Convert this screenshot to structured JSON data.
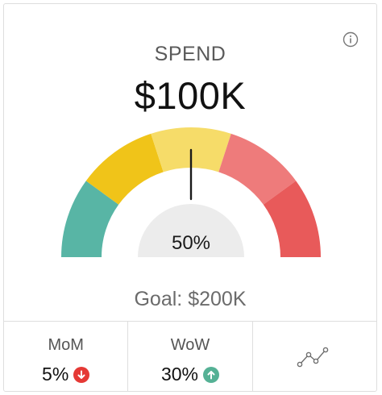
{
  "card": {
    "title": "SPEND",
    "value": "$100K",
    "info_icon": "info-circle-icon"
  },
  "gauge": {
    "percent_label": "50%",
    "percent": 50,
    "segments": [
      {
        "color": "#58b5a5"
      },
      {
        "color": "#f0c419"
      },
      {
        "color": "#f6dc69"
      },
      {
        "color": "#ee7b7b"
      },
      {
        "color": "#e85a5a"
      }
    ],
    "inner_color": "#ececec",
    "needle_color": "#1a1a1a"
  },
  "goal": {
    "label": "Goal:",
    "value": "$200K"
  },
  "stats": {
    "mom": {
      "label": "MoM",
      "value": "5%",
      "direction": "down",
      "icon": "arrow-down-circle-icon",
      "color": "#e53935"
    },
    "wow": {
      "label": "WoW",
      "value": "30%",
      "direction": "up",
      "icon": "arrow-up-circle-icon",
      "color": "#55b195"
    },
    "trend": {
      "icon": "line-chart-icon"
    }
  }
}
